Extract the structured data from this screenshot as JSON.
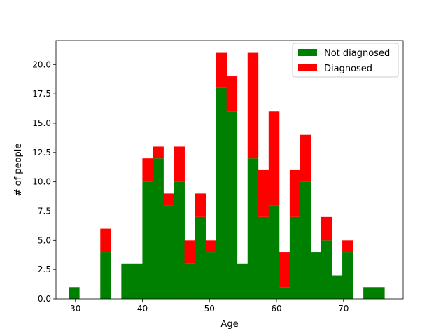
{
  "chart_data": {
    "type": "bar",
    "stacked": true,
    "title": "",
    "xlabel": "Age",
    "ylabel": "# of people",
    "xlim": [
      27.1,
      78.9
    ],
    "ylim": [
      0,
      22.05
    ],
    "xticks": [
      30,
      40,
      50,
      60,
      70
    ],
    "yticks": [
      0.0,
      2.5,
      5.0,
      7.5,
      10.0,
      12.5,
      15.0,
      17.5,
      20.0
    ],
    "bin_edges": [
      29,
      30.57,
      32.14,
      33.71,
      35.28,
      36.85,
      38.42,
      39.99,
      41.56,
      43.13,
      44.7,
      46.27,
      47.84,
      49.41,
      50.98,
      52.55,
      54.12,
      55.69,
      57.26,
      58.83,
      60.4,
      61.97,
      63.54,
      65.11,
      66.68,
      68.25,
      69.82,
      71.39,
      72.96,
      74.53,
      76.1
    ],
    "series": [
      {
        "name": "Not diagnosed",
        "color": "#008000",
        "values": [
          1,
          0,
          0,
          4,
          0,
          3,
          3,
          10,
          12,
          8,
          10,
          3,
          7,
          4,
          18,
          16,
          3,
          12,
          7,
          8,
          1,
          7,
          10,
          4,
          5,
          2,
          4,
          0,
          1,
          1
        ]
      },
      {
        "name": "Diagnosed",
        "color": "#ff0000",
        "values": [
          0,
          0,
          0,
          2,
          0,
          0,
          0,
          2,
          1,
          1,
          3,
          2,
          2,
          1,
          3,
          3,
          0,
          9,
          4,
          8,
          3,
          4,
          4,
          0,
          2,
          0,
          1,
          0,
          0,
          0
        ]
      }
    ],
    "legend": {
      "position": "top-right"
    },
    "grid": false
  }
}
